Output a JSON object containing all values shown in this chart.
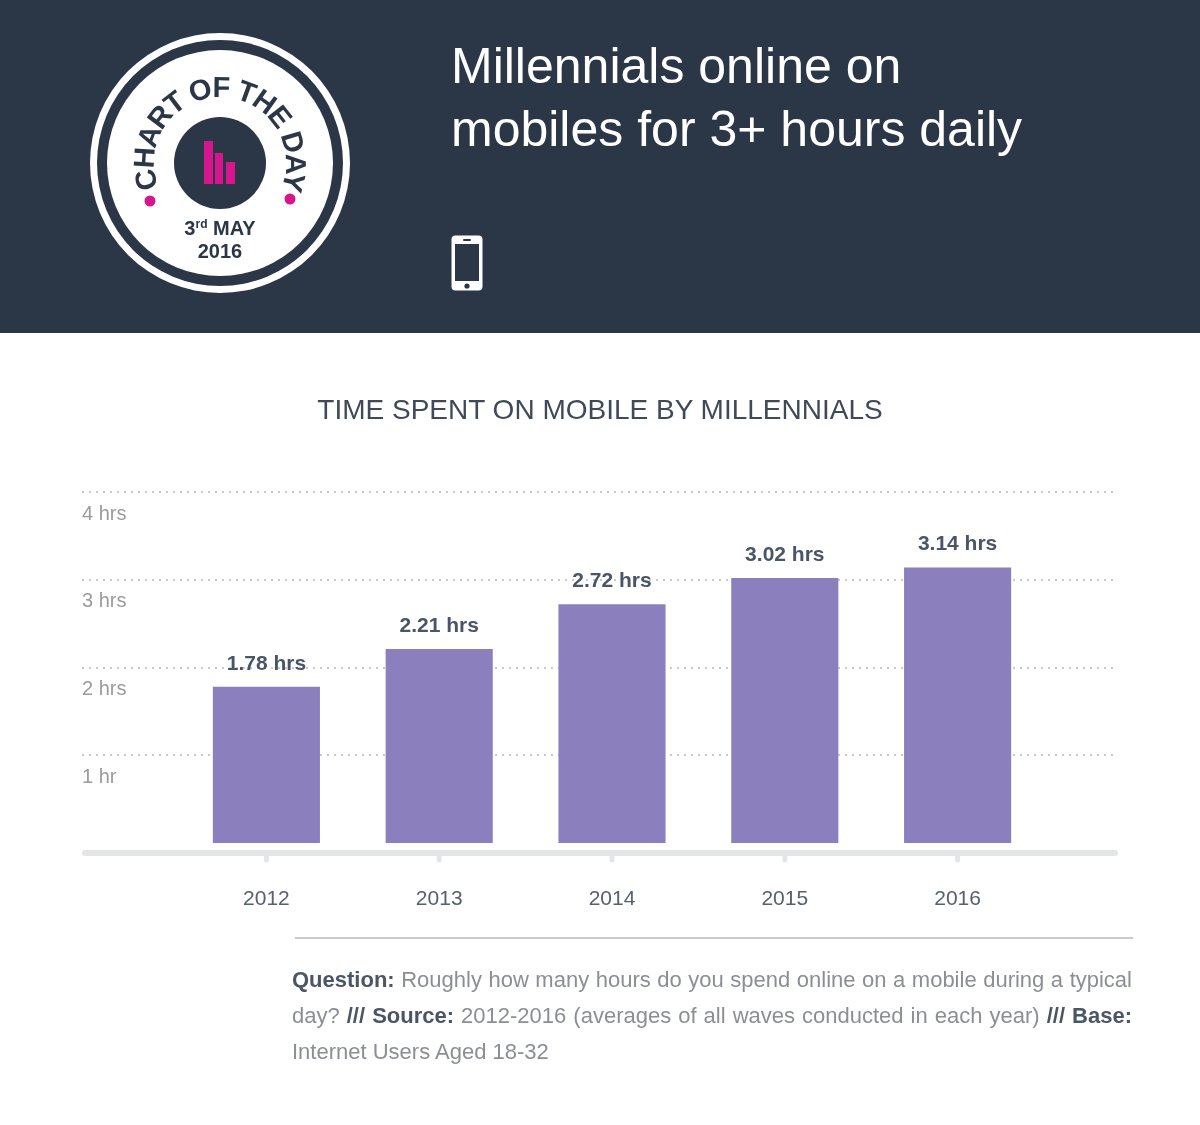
{
  "chart_data": {
    "type": "bar",
    "title": "Millennials online on mobiles for 3+ hours daily",
    "subtitle": "TIME SPENT ON MOBILE BY MILLENNIALS",
    "categories": [
      "2012",
      "2013",
      "2014",
      "2015",
      "2016"
    ],
    "values": [
      1.78,
      2.21,
      2.72,
      3.02,
      3.14
    ],
    "value_labels": [
      "1.78 hrs",
      "2.21 hrs",
      "2.72 hrs",
      "3.02 hrs",
      "3.14 hrs"
    ],
    "color": "#8b80bd",
    "ylim": [
      0,
      4
    ],
    "yticks": [
      {
        "value": 1,
        "label": "1 hr"
      },
      {
        "value": 2,
        "label": "2 hrs"
      },
      {
        "value": 3,
        "label": "3 hrs"
      },
      {
        "value": 4,
        "label": "4 hrs"
      }
    ],
    "grid": "y",
    "annotations": [
      "CHART OF THE DAY",
      "3$^{rd}$ MAY 2016",
      "Question: Roughly how many hours do you spend online on a mobile during a typical day? /// Source: 2012-2016 (averages of all waves conducted in each year) /// Base: Internet Users Aged 18-32"
    ]
  }
}
